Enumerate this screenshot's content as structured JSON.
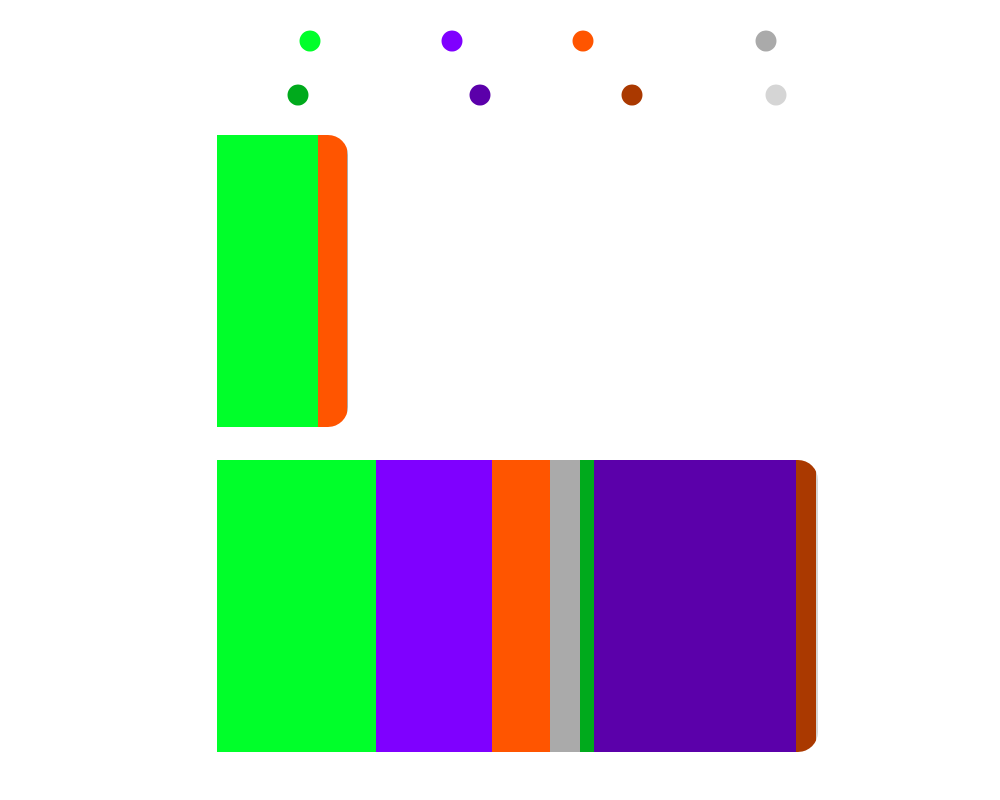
{
  "chart_data": {
    "type": "bar",
    "orientation": "horizontal",
    "stacked": true,
    "grid": false,
    "legend_position": "top",
    "categories": [
      "",
      ""
    ],
    "series": [
      {
        "color": "#00ff2a",
        "values": [
          101,
          159
        ]
      },
      {
        "color": "#7f00ff",
        "values": [
          0,
          116
        ]
      },
      {
        "color": "#ff5500",
        "values": [
          29,
          58
        ]
      },
      {
        "color": "#aaaaaa",
        "values": [
          1,
          30
        ]
      },
      {
        "color": "#00aa1c",
        "values": [
          0,
          14
        ]
      },
      {
        "color": "#5b00aa",
        "values": [
          0,
          202
        ]
      },
      {
        "color": "#aa3900",
        "values": [
          0,
          20
        ]
      },
      {
        "color": "#d5d5d5",
        "values": [
          0,
          2
        ]
      }
    ]
  }
}
